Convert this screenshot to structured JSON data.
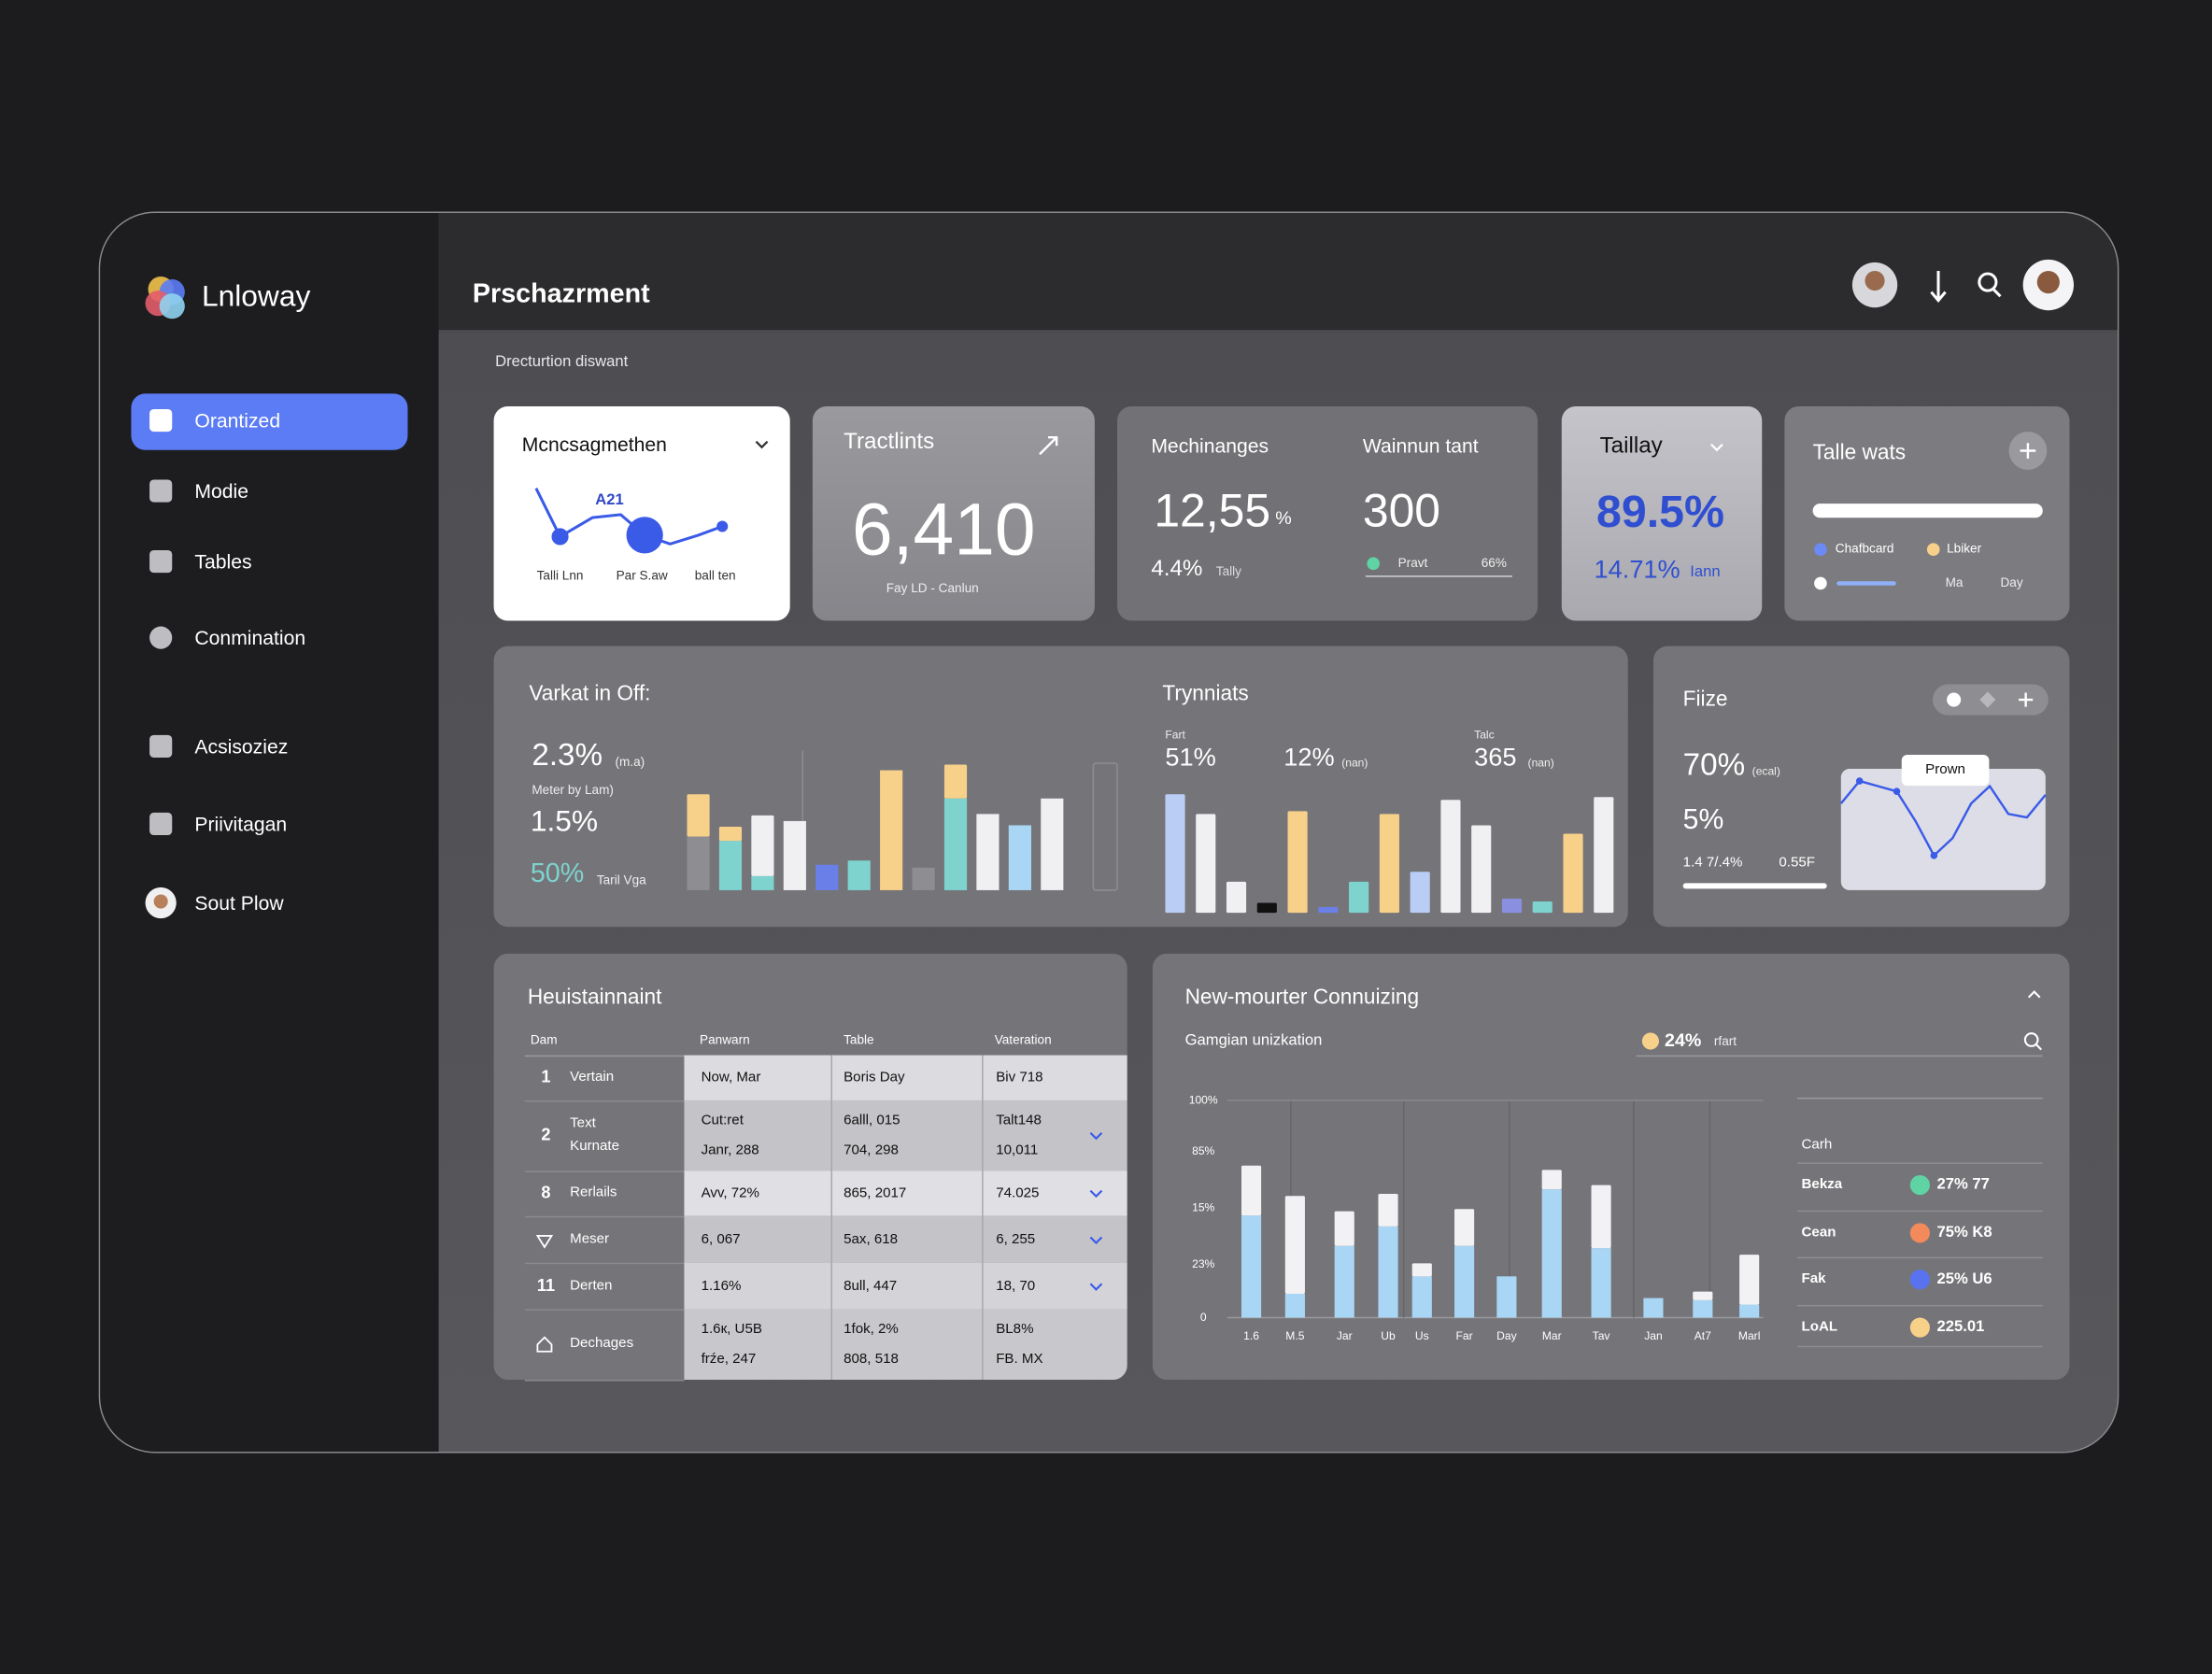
{
  "sidebar": {
    "brand": "Lnloway",
    "nav": [
      "Orantized",
      "Modie",
      "Tables",
      "Conmination",
      "Acsisoziez",
      "Priivitagan",
      "Sout Plow"
    ]
  },
  "header": {
    "title": "Prschazrment",
    "subtitle": "Drecturtion diswant"
  },
  "card_trend": {
    "title": "Mcncsagmethen",
    "annotation": "A21",
    "labels": [
      "Talli Lnn",
      "Par S.aw",
      "ball ten"
    ],
    "values": [
      48,
      15,
      28,
      30,
      16,
      10,
      16,
      22
    ]
  },
  "card_total": {
    "title": "Tractlints",
    "value": "6,410",
    "caption": "Fay LD - Canlun"
  },
  "card_changes": {
    "title": "Mechinanges",
    "value": "12,55",
    "unit": "%",
    "delta": "4.4%",
    "delta_label": "Tally",
    "title2": "Wainnun tant",
    "value2": "300",
    "legend_label": "Pravt",
    "legend_value": "66%"
  },
  "card_tally": {
    "title": "Taillay",
    "value": "89.5%",
    "delta": "14.71%",
    "delta_label": "Iann"
  },
  "card_watch": {
    "title": "Talle wats",
    "legend": [
      "Chafbcard",
      "Lbiker"
    ],
    "labels": [
      "Ma",
      "Day"
    ]
  },
  "panel_market": {
    "title": "Varkat in Off:",
    "value": "2.3%",
    "note": "(m.a)",
    "caption": "Meter by Lam)",
    "value2": "1.5%",
    "value3": "50%",
    "caption3": "Taril Vga",
    "bars": {
      "ylim": [
        0,
        100
      ],
      "series": [
        {
          "values": [
            38,
            35,
            10,
            49,
            18,
            21,
            85,
            16,
            65,
            54,
            46,
            65
          ],
          "colors": [
            "#8e8e92",
            "#7ed3cf",
            "#7ed3cf",
            "#f0f0f2",
            "#6b7fe8",
            "#7ed3cf",
            "#f7d08a",
            "#8e8e92",
            "#7ed3cf",
            "#f0f0f2",
            "#a9d6f5",
            "#f0f0f2"
          ]
        },
        {
          "values": [
            30,
            10,
            43,
            0,
            0,
            0,
            0,
            0,
            24,
            0,
            0,
            0
          ],
          "colors": [
            "#f7d08a",
            "#f7d08a",
            "#f0f0f2",
            "#f0f0f2",
            "#f0f0f2",
            "#f0f0f2",
            "#f0f0f2",
            "#f0f0f2",
            "#f7d08a",
            "#f0f0f2",
            "#f0f0f2",
            "#f0f0f2"
          ]
        }
      ]
    }
  },
  "panel_trend": {
    "title": "Trynniats",
    "label1": "Fart",
    "value1": "51%",
    "value2": "12%",
    "note2": "(nan)",
    "label3": "Talc",
    "value3": "365",
    "note3": "(nan)",
    "bars": {
      "ylim": [
        0,
        100
      ],
      "values": [
        84,
        70,
        22,
        7,
        72,
        4,
        22,
        70,
        29,
        80,
        62,
        10,
        8,
        56,
        82
      ],
      "colors": [
        "#b9cdf5",
        "#f0f0f2",
        "#f0f0f2",
        "#111111",
        "#f7d08a",
        "#6b7fe8",
        "#7ed3cf",
        "#f7d08a",
        "#b9cdf5",
        "#f0f0f2",
        "#f0f0f2",
        "#8a8fe0",
        "#7ed3cf",
        "#f7d08a",
        "#f0f0f2"
      ]
    }
  },
  "panel_fiize": {
    "title": "Fiize",
    "value": "70%",
    "note": "(ecal)",
    "value2": "5%",
    "foot": [
      "1.4 7/.4%",
      "0.55F"
    ],
    "tooltip": "Prown",
    "ylim": [
      0,
      70
    ],
    "values": [
      50,
      63,
      60,
      57,
      40,
      20,
      30,
      50,
      60,
      44,
      42,
      55
    ]
  },
  "table": {
    "title": "Heuistainnaint",
    "columns": [
      "Dam",
      "Panwarn",
      "Table",
      "Vateration"
    ],
    "rows": [
      [
        "1",
        "Vertain",
        "Now, Mar",
        "Boris Day",
        "Biv 718"
      ],
      [
        "2",
        "Text\nKurnate",
        "Cut:ret\nJanr, 288",
        "6alll, 015\n704, 298",
        "Talt148\n10,011"
      ],
      [
        "8",
        "Rerlails",
        "Avv, 72%",
        "865, 2017",
        "74.025"
      ],
      [
        null,
        "Meser",
        "6, 067",
        "5ax, 618",
        "6, 255"
      ],
      [
        "11",
        "Derten",
        "1.16%",
        "8ull, 447",
        "18, 70"
      ],
      [
        null,
        "Dechages",
        "1.6к, U5B\nfrźe, 247",
        "1fok, 2%\n808, 518",
        "BL8%\nFB. MX"
      ]
    ]
  },
  "connuizing": {
    "title": "New-mourter Connuizing",
    "subtitle": "Gamgian unizkation",
    "badge": "24%",
    "badge_label": "rfart",
    "chart": {
      "ylim": [
        0,
        100
      ],
      "ylabels": [
        "100%",
        "85%",
        "15%",
        "23%",
        "0"
      ],
      "categories": [
        "1.6",
        "M.5",
        "Jar",
        "Ub",
        "Us",
        "Far",
        "Day",
        "Mar",
        "Tav",
        "Jan",
        "At7",
        "Marl"
      ],
      "series": [
        {
          "color": "#a9d6f5",
          "values": [
            47,
            11,
            33,
            42,
            19,
            33,
            19,
            59,
            32,
            9,
            8,
            6
          ]
        },
        {
          "color": "#f2f2f4",
          "values": [
            23,
            45,
            16,
            15,
            6,
            17,
            0,
            9,
            29,
            0,
            4,
            23
          ]
        }
      ]
    },
    "legend": {
      "title": "Carh",
      "items": [
        {
          "label": "Bekza",
          "value": "27% 77",
          "color": "#5fd3a3"
        },
        {
          "label": "Cean",
          "value": "75% K8",
          "color": "#f28a5b"
        },
        {
          "label": "Fak",
          "value": "25% U6",
          "color": "#5872f0"
        },
        {
          "label": "LoAL",
          "value": "225.01",
          "color": "#f7d08a"
        }
      ]
    }
  }
}
